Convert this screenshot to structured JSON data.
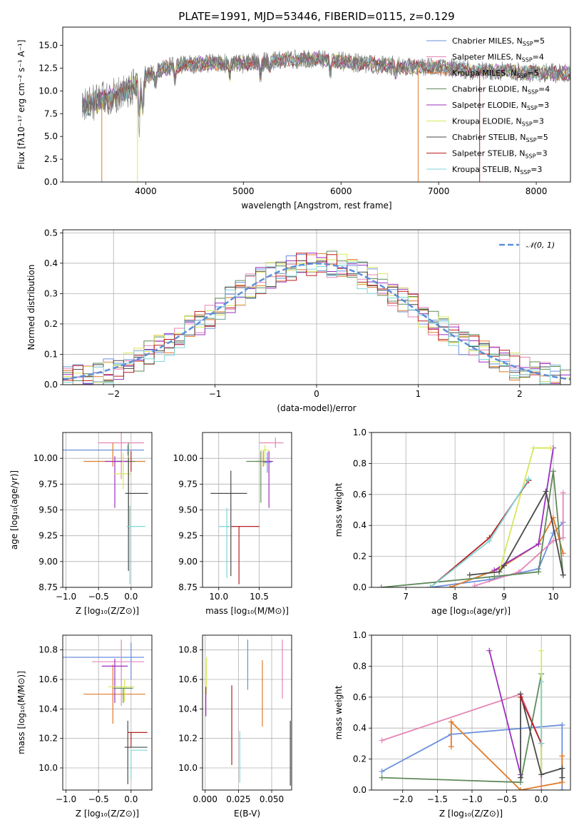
{
  "colors": {
    "chabrier_miles": "#6a8fde",
    "salpeter_miles": "#e07a2a",
    "kroupa_miles": "#e07a2a",
    "chabrier_elodie": "#5f8a5a",
    "salpeter_elodie": "#9b2fc0",
    "kroupa_elodie": "#d7e85a",
    "chabrier_stelib": "#4a4a4a",
    "salpeter_stelib": "#b81f1f",
    "kroupa_stelib": "#7fd6d8",
    "pink": "#e585b6",
    "gauss": "#5b8fd8",
    "grid": "#b0b0b0"
  },
  "chart_data": [
    {
      "id": "spectrum",
      "type": "line",
      "title": "PLATE=1991, MJD=53446, FIBERID=0115, z=0.129",
      "xlabel": "wavelength [Angstrom, rest frame]",
      "ylabel": "Flux [fλ10⁻¹⁷ erg cm⁻² s⁻¹ A⁻¹]",
      "xlim": [
        3150,
        8350
      ],
      "ylim": [
        0,
        17
      ],
      "xticks": [
        "4000",
        "5000",
        "6000",
        "7000",
        "8000"
      ],
      "yticks": [
        "0.0",
        "2.5",
        "5.0",
        "7.5",
        "10.0",
        "12.5",
        "15.0"
      ],
      "legend_position": "top-right",
      "series": [
        {
          "name": "Chabrier MILES, N_SSP=5",
          "label_main": "Chabrier MILES, N",
          "label_sub": "SSP",
          "label_tail": "=5",
          "color": "#6a8fde"
        },
        {
          "name": "Salpeter MILES, N_SSP=4",
          "label_main": "Salpeter MILES, N",
          "label_sub": "SSP",
          "label_tail": "=4",
          "color": "#e585b6"
        },
        {
          "name": "Kroupa MILES, N_SSP=5",
          "label_main": "Kroupa MILES, N",
          "label_sub": "SSP",
          "label_tail": "=5",
          "color": "#e07a2a"
        },
        {
          "name": "Chabrier ELODIE, N_SSP=4",
          "label_main": "Chabrier ELODIE, N",
          "label_sub": "SSP",
          "label_tail": "=4",
          "color": "#5f8a5a"
        },
        {
          "name": "Salpeter ELODIE, N_SSP=3",
          "label_main": "Salpeter ELODIE, N",
          "label_sub": "SSP",
          "label_tail": "=3",
          "color": "#9b2fc0"
        },
        {
          "name": "Kroupa ELODIE, N_SSP=3",
          "label_main": "Kroupa ELODIE, N",
          "label_sub": "SSP",
          "label_tail": "=3",
          "color": "#d7e85a"
        },
        {
          "name": "Chabrier STELIB, N_SSP=5",
          "label_main": "Chabrier STELIB, N",
          "label_sub": "SSP",
          "label_tail": "=5",
          "color": "#4a4a4a"
        },
        {
          "name": "Salpeter STELIB, N_SSP=3",
          "label_main": "Salpeter STELIB, N",
          "label_sub": "SSP",
          "label_tail": "=3",
          "color": "#b81f1f"
        },
        {
          "name": "Kroupa STELIB, N_SSP=3",
          "label_main": "Kroupa STELIB, N",
          "label_sub": "SSP",
          "label_tail": "=3",
          "color": "#7fd6d8"
        }
      ],
      "continuum_x": [
        3350,
        3500,
        3700,
        3850,
        3950,
        4100,
        4300,
        4600,
        5000,
        5400,
        5800,
        6200,
        6500,
        6800,
        7100,
        7400,
        7700,
        8000,
        8300
      ],
      "continuum_y": [
        8.3,
        8.8,
        9.6,
        10.2,
        11.2,
        12.2,
        12.8,
        13.0,
        13.0,
        13.4,
        13.5,
        13.0,
        12.8,
        12.6,
        12.5,
        12.2,
        12.1,
        12.0,
        11.9
      ],
      "observed_data_x_range": [
        3350,
        8350
      ]
    },
    {
      "id": "residuals",
      "type": "line",
      "xlabel": "(data-model)/error",
      "ylabel": "Normed distribution",
      "xlim": [
        -2.5,
        2.5
      ],
      "ylim": [
        0,
        0.51
      ],
      "xticks": [
        "−2",
        "−1",
        "0",
        "1",
        "2"
      ],
      "yticks": [
        "0.0",
        "0.1",
        "0.2",
        "0.3",
        "0.4",
        "0.5"
      ],
      "legend_label": "𝒩(0, 1)",
      "legend_position": "top-right",
      "gaussian_mean": 0,
      "gaussian_sigma": 1,
      "bin_width": 0.1
    },
    {
      "id": "age_vs_z",
      "type": "scatter",
      "xlabel": "Z [log₁₀(Z/Z⊙)]",
      "ylabel": "age  [log₁₀(age/yr)]",
      "xlim": [
        -1.05,
        0.32
      ],
      "ylim": [
        8.75,
        10.25
      ],
      "xticks": [
        "−1.0",
        "−0.5",
        "0.0"
      ],
      "yticks": [
        "8.75",
        "9.00",
        "9.25",
        "9.50",
        "9.75",
        "10.00"
      ],
      "points": [
        {
          "x": -0.05,
          "xerr": [
            1.0,
            0.25
          ],
          "y": 10.08,
          "yerr": [
            0.05,
            0.05
          ],
          "color": "#6a8fde"
        },
        {
          "x": -0.15,
          "xerr": [
            0.35,
            0.35
          ],
          "y": 10.15,
          "yerr": [
            0.35,
            0.1
          ],
          "color": "#e585b6"
        },
        {
          "x": -0.28,
          "xerr": [
            0.45,
            0.5
          ],
          "y": 9.97,
          "yerr": [
            0.05,
            0.18
          ],
          "color": "#e07a2a"
        },
        {
          "x": -0.04,
          "xerr": [
            0.2,
            0.1
          ],
          "y": 9.97,
          "yerr": [
            0.65,
            0.18
          ],
          "color": "#5f8a5a"
        },
        {
          "x": -0.25,
          "xerr": [
            0.15,
            0.2
          ],
          "y": 9.97,
          "yerr": [
            0.45,
            0.05
          ],
          "color": "#9b2fc0"
        },
        {
          "x": -0.12,
          "xerr": [
            0.15,
            0.12
          ],
          "y": 9.85,
          "yerr": [
            0.15,
            0.2
          ],
          "color": "#d7e85a"
        },
        {
          "x": -0.04,
          "xerr": [
            0.05,
            0.3
          ],
          "y": 9.66,
          "yerr": [
            0.75,
            0.34
          ],
          "color": "#4a4a4a"
        },
        {
          "x": -0.02,
          "xerr": [
            0.05,
            0.24
          ],
          "y": 9.34,
          "yerr": [
            0.56,
            0.2
          ],
          "color": "#7fd6d8"
        },
        {
          "x": 0.0,
          "xerr": [
            0,
            0
          ],
          "y": 9.97,
          "yerr": [
            0.1,
            0.1
          ],
          "color": "#b81f1f"
        }
      ]
    },
    {
      "id": "age_vs_mass",
      "type": "scatter",
      "xlabel": "mass [log₁₀(M/M⊙)]",
      "ylabel": "",
      "xlim": [
        9.8,
        10.9
      ],
      "ylim": [
        8.75,
        10.25
      ],
      "xticks": [
        "10.0",
        "10.5"
      ],
      "yticks": [
        "8.75",
        "9.00",
        "9.25",
        "9.50",
        "9.75",
        "10.00"
      ],
      "points": [
        {
          "x": 10.7,
          "xerr": [
            0.2,
            0.1
          ],
          "y": 10.15,
          "yerr": [
            0.05,
            0.05
          ],
          "color": "#e585b6"
        },
        {
          "x": 10.57,
          "xerr": [
            0.05,
            0.05
          ],
          "y": 10.08,
          "yerr": [
            0.15,
            0.05
          ],
          "color": "#d7e85a"
        },
        {
          "x": 10.55,
          "xerr": [
            0.1,
            0.1
          ],
          "y": 9.97,
          "yerr": [
            0.05,
            0.1
          ],
          "color": "#e07a2a"
        },
        {
          "x": 10.62,
          "xerr": [
            0.05,
            0.05
          ],
          "y": 9.97,
          "yerr": [
            0.45,
            0.1
          ],
          "color": "#9b2fc0"
        },
        {
          "x": 10.52,
          "xerr": [
            0.18,
            0.05
          ],
          "y": 9.97,
          "yerr": [
            0.4,
            0.1
          ],
          "color": "#5f8a5a"
        },
        {
          "x": 10.15,
          "xerr": [
            0.25,
            0.2
          ],
          "y": 9.66,
          "yerr": [
            0.8,
            0.22
          ],
          "color": "#4a4a4a"
        },
        {
          "x": 10.25,
          "xerr": [
            0.15,
            0.25
          ],
          "y": 9.34,
          "yerr": [
            0.56,
            0.0
          ],
          "color": "#b81f1f"
        },
        {
          "x": 10.1,
          "xerr": [
            0.1,
            0.05
          ],
          "y": 9.34,
          "yerr": [
            0.5,
            0.18
          ],
          "color": "#7fd6d8"
        },
        {
          "x": 10.6,
          "xerr": [
            0.05,
            0.05
          ],
          "y": 9.96,
          "yerr": [
            0.1,
            0.1
          ],
          "color": "#6a8fde"
        }
      ]
    },
    {
      "id": "massweight_vs_age",
      "type": "line",
      "xlabel": "age  [log₁₀(age/yr)]",
      "ylabel": "mass weight",
      "xlim": [
        6.3,
        10.35
      ],
      "ylim": [
        0,
        1.0
      ],
      "xticks": [
        "7",
        "8",
        "9",
        "10"
      ],
      "yticks": [
        "0.0",
        "0.2",
        "0.4",
        "0.6",
        "0.8",
        "1.0"
      ],
      "series": [
        {
          "color": "#6a8fde",
          "x": [
            7.5,
            8.7,
            9.7,
            10.0,
            10.2
          ],
          "y": [
            0.0,
            0.05,
            0.12,
            0.35,
            0.42
          ]
        },
        {
          "color": "#e585b6",
          "x": [
            8.4,
            9.3,
            10.0,
            10.2,
            10.2
          ],
          "y": [
            0.01,
            0.1,
            0.3,
            0.32,
            0.61
          ]
        },
        {
          "color": "#e07a2a",
          "x": [
            7.9,
            8.9,
            9.7,
            10.0,
            10.2
          ],
          "y": [
            0.0,
            0.12,
            0.28,
            0.45,
            0.22
          ]
        },
        {
          "color": "#5f8a5a",
          "x": [
            6.5,
            8.8,
            9.7,
            10.0,
            10.2
          ],
          "y": [
            0.0,
            0.07,
            0.1,
            0.75,
            0.08
          ]
        },
        {
          "color": "#9b2fc0",
          "x": [
            8.8,
            9.7,
            10.0
          ],
          "y": [
            0.11,
            0.28,
            0.9
          ]
        },
        {
          "color": "#d7e85a",
          "x": [
            8.9,
            9.6,
            9.95
          ],
          "y": [
            0.1,
            0.9,
            0.9
          ]
        },
        {
          "color": "#4a4a4a",
          "x": [
            8.3,
            8.9,
            9.0,
            9.85,
            10.2
          ],
          "y": [
            0.08,
            0.1,
            0.14,
            0.62,
            0.08
          ]
        },
        {
          "color": "#b81f1f",
          "x": [
            7.5,
            8.7,
            9.5
          ],
          "y": [
            0.0,
            0.32,
            0.69
          ]
        },
        {
          "color": "#7fd6d8",
          "x": [
            7.5,
            8.7,
            9.5
          ],
          "y": [
            0.0,
            0.3,
            0.7
          ]
        }
      ]
    },
    {
      "id": "mass_vs_z",
      "type": "scatter",
      "xlabel": "Z [log₁₀(Z/Z⊙)]",
      "ylabel": "mass [log₁₀(M/M⊙)]",
      "xlim": [
        -1.05,
        0.32
      ],
      "ylim": [
        9.85,
        10.9
      ],
      "xticks": [
        "−1.0",
        "−0.5",
        "0.0"
      ],
      "yticks": [
        "10.0",
        "10.2",
        "10.4",
        "10.6",
        "10.8"
      ],
      "points": [
        {
          "x": -0.05,
          "xerr": [
            1.0,
            0.25
          ],
          "y": 10.75,
          "yerr": [
            0.0,
            0.0
          ],
          "color": "#6a8fde"
        },
        {
          "x": -0.15,
          "xerr": [
            0.45,
            0.35
          ],
          "y": 10.72,
          "yerr": [
            0.3,
            0.15
          ],
          "color": "#e585b6"
        },
        {
          "x": -0.28,
          "xerr": [
            0.45,
            0.5
          ],
          "y": 10.5,
          "yerr": [
            0.2,
            0.2
          ],
          "color": "#e07a2a"
        },
        {
          "x": -0.25,
          "xerr": [
            0.2,
            0.2
          ],
          "y": 10.69,
          "yerr": [
            0.25,
            0.05
          ],
          "color": "#9b2fc0"
        },
        {
          "x": -0.1,
          "xerr": [
            0.25,
            0.15
          ],
          "y": 10.55,
          "yerr": [
            0.1,
            0.05
          ],
          "color": "#d7e85a"
        },
        {
          "x": -0.12,
          "xerr": [
            0.15,
            0.15
          ],
          "y": 10.54,
          "yerr": [
            0.1,
            0.0
          ],
          "color": "#5f8a5a"
        },
        {
          "x": 0.0,
          "xerr": [
            0.05,
            0.25
          ],
          "y": 10.24,
          "yerr": [
            0.1,
            0.0
          ],
          "color": "#b81f1f"
        },
        {
          "x": -0.05,
          "xerr": [
            0.05,
            0.3
          ],
          "y": 10.14,
          "yerr": [
            0.25,
            0.18
          ],
          "color": "#4a4a4a"
        },
        {
          "x": 0.0,
          "xerr": [
            0.0,
            0.25
          ],
          "y": 10.12,
          "yerr": [
            0.2,
            0.0
          ],
          "color": "#7fd6d8"
        },
        {
          "x": 0.0,
          "xerr": [
            0.0,
            0.0
          ],
          "y": 10.7,
          "yerr": [
            0.1,
            0.15
          ],
          "color": "#6a8fde"
        }
      ]
    },
    {
      "id": "mass_vs_ebv",
      "type": "scatter",
      "xlabel": "E(B-V)",
      "ylabel": "",
      "xlim": [
        -0.002,
        0.065
      ],
      "ylim": [
        9.85,
        10.9
      ],
      "xticks": [
        "0.000",
        "0.025",
        "0.050"
      ],
      "yticks": [
        "10.0",
        "10.2",
        "10.4",
        "10.6",
        "10.8"
      ],
      "points": [
        {
          "x": 0.001,
          "y": 10.6,
          "yerr": [
            0.1,
            0.15
          ],
          "color": "#d7e85a"
        },
        {
          "x": 0.0005,
          "y": 10.45,
          "yerr": [
            0.1,
            0.1
          ],
          "color": "#9b2fc0"
        },
        {
          "x": 0.0005,
          "y": 10.2,
          "yerr": [
            0.0,
            0.0
          ],
          "color": "#5f8a5a"
        },
        {
          "x": 0.02,
          "y": 10.24,
          "yerr": [
            0.22,
            0.32
          ],
          "color": "#b81f1f"
        },
        {
          "x": 0.026,
          "y": 10.15,
          "yerr": [
            0.25,
            0.1
          ],
          "color": "#7fd6d8"
        },
        {
          "x": 0.032,
          "y": 10.7,
          "yerr": [
            0.17,
            0.17
          ],
          "color": "#6a8fde"
        },
        {
          "x": 0.043,
          "y": 10.5,
          "yerr": [
            0.22,
            0.23
          ],
          "color": "#e07a2a"
        },
        {
          "x": 0.058,
          "y": 10.7,
          "yerr": [
            0.23,
            0.17
          ],
          "color": "#e585b6"
        },
        {
          "x": 0.064,
          "y": 10.1,
          "yerr": [
            0.22,
            0.22
          ],
          "color": "#4a4a4a"
        }
      ]
    },
    {
      "id": "massweight_vs_z",
      "type": "line",
      "xlabel": "Z [log₁₀(Z/Z⊙)]",
      "ylabel": "mass weight",
      "xlim": [
        -2.45,
        0.42
      ],
      "ylim": [
        0,
        1.0
      ],
      "xticks": [
        "−2.0",
        "−1.5",
        "−1.0",
        "−0.5",
        "0.0"
      ],
      "yticks": [
        "0.0",
        "0.2",
        "0.4",
        "0.6",
        "0.8",
        "1.0"
      ],
      "series": [
        {
          "color": "#6a8fde",
          "x": [
            -2.3,
            -1.3,
            0.3,
            0.3
          ],
          "y": [
            0.12,
            0.36,
            0.42,
            0.0
          ]
        },
        {
          "color": "#e585b6",
          "x": [
            -2.3,
            -0.3,
            0.0,
            0.0
          ],
          "y": [
            0.32,
            0.62,
            0.3,
            0.0
          ]
        },
        {
          "color": "#e07a2a",
          "x": [
            -1.3,
            -1.3,
            -0.3,
            0.3,
            0.3
          ],
          "y": [
            0.28,
            0.44,
            0.0,
            0.05,
            0.22
          ]
        },
        {
          "color": "#5f8a5a",
          "x": [
            -2.3,
            -0.3,
            0.0,
            0.0
          ],
          "y": [
            0.08,
            0.05,
            0.75,
            0.1
          ]
        },
        {
          "color": "#9b2fc0",
          "x": [
            -0.75,
            -0.3
          ],
          "y": [
            0.9,
            0.1
          ]
        },
        {
          "color": "#d7e85a",
          "x": [
            0.0,
            0.0
          ],
          "y": [
            0.9,
            0.1
          ]
        },
        {
          "color": "#4a4a4a",
          "x": [
            -0.3,
            -0.3,
            0.0,
            0.3,
            0.3
          ],
          "y": [
            0.08,
            0.62,
            0.1,
            0.14,
            0.08
          ]
        },
        {
          "color": "#b81f1f",
          "x": [
            -0.3,
            0.0
          ],
          "y": [
            0.6,
            0.3
          ]
        },
        {
          "color": "#7fd6d8",
          "x": [
            0.0,
            0.0
          ],
          "y": [
            0.7,
            0.3
          ]
        }
      ]
    }
  ]
}
